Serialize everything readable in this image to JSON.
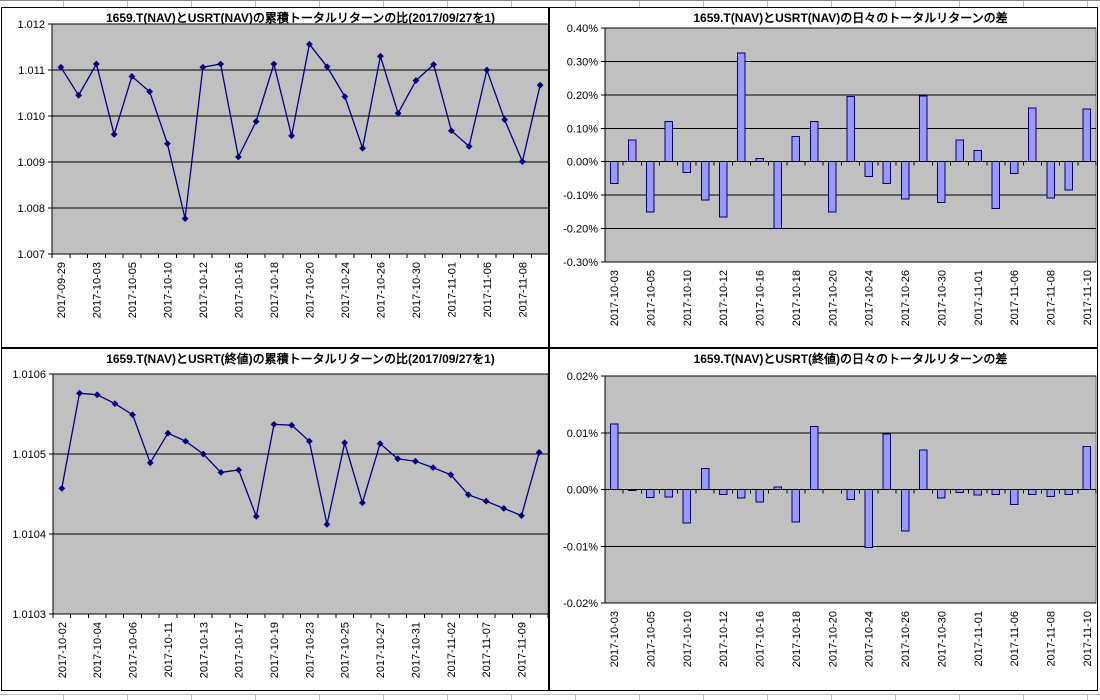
{
  "app": {
    "context": "excel-embedded-charts",
    "grid_rows_visible": [
      "top-partial-row",
      "bottom-partial-row"
    ]
  },
  "colors": {
    "plot_bg": "#c0c0c0",
    "chart_bg": "#ffffff",
    "gridline": "#000000",
    "plot_border": "#6f6f6f",
    "line_series": "#000080",
    "marker": "#000080",
    "bar_fill": "#9999ff",
    "bar_border": "#000066",
    "axis_text": "#000000"
  },
  "chart_data": [
    {
      "id": "nav-nav-cumulative-ratio",
      "type": "line",
      "title": "1659.T(NAV)とUSRT(NAV)の累積トータルリターンの比(2017/09/27を1)",
      "xlabel": "",
      "ylabel": "",
      "legend": "none",
      "grid": "on",
      "marker": "diamond",
      "ylim": [
        1.007,
        1.012
      ],
      "x_label_every": 2,
      "yticks": [
        {
          "v": 1.012,
          "label": "1.012"
        },
        {
          "v": 1.011,
          "label": "1.011"
        },
        {
          "v": 1.01,
          "label": "1.010"
        },
        {
          "v": 1.009,
          "label": "1.009"
        },
        {
          "v": 1.008,
          "label": "1.008"
        },
        {
          "v": 1.007,
          "label": "1.007"
        }
      ],
      "x": [
        "2017-09-29",
        "2017-10-02",
        "2017-10-03",
        "2017-10-04",
        "2017-10-05",
        "2017-10-06",
        "2017-10-10",
        "2017-10-11",
        "2017-10-12",
        "2017-10-13",
        "2017-10-16",
        "2017-10-17",
        "2017-10-18",
        "2017-10-19",
        "2017-10-20",
        "2017-10-23",
        "2017-10-24",
        "2017-10-25",
        "2017-10-26",
        "2017-10-27",
        "2017-10-30",
        "2017-10-31",
        "2017-11-01",
        "2017-11-02",
        "2017-11-06",
        "2017-11-07",
        "2017-11-08",
        "2017-11-09"
      ],
      "values": [
        1.01106,
        1.01045,
        1.01113,
        1.0096,
        1.01086,
        1.01053,
        1.0094,
        1.00777,
        1.01106,
        1.01113,
        1.00911,
        1.00988,
        1.01113,
        1.00957,
        1.01156,
        1.01107,
        1.01042,
        1.0093,
        1.0113,
        1.01006,
        1.01077,
        1.01112,
        1.00968,
        1.00934,
        1.011,
        1.00992,
        1.00901,
        1.01067
      ]
    },
    {
      "id": "nav-nav-daily-diff",
      "type": "bar",
      "title": "1659.T(NAV)とUSRT(NAV)の日々のトータルリターンの差",
      "xlabel": "",
      "ylabel": "",
      "legend": "none",
      "grid": "on",
      "unit": "percent",
      "ylim": [
        -0.3,
        0.4
      ],
      "x_label_every": 2,
      "yticks": [
        {
          "v": 0.4,
          "label": "0.40%"
        },
        {
          "v": 0.3,
          "label": "0.30%"
        },
        {
          "v": 0.2,
          "label": "0.20%"
        },
        {
          "v": 0.1,
          "label": "0.10%"
        },
        {
          "v": 0.0,
          "label": "0.00%"
        },
        {
          "v": -0.1,
          "label": "-0.10%"
        },
        {
          "v": -0.2,
          "label": "-0.20%"
        },
        {
          "v": -0.3,
          "label": "-0.30%"
        }
      ],
      "x": [
        "2017-10-03",
        "2017-10-04",
        "2017-10-05",
        "2017-10-06",
        "2017-10-10",
        "2017-10-11",
        "2017-10-12",
        "2017-10-13",
        "2017-10-16",
        "2017-10-17",
        "2017-10-18",
        "2017-10-19",
        "2017-10-20",
        "2017-10-23",
        "2017-10-24",
        "2017-10-25",
        "2017-10-26",
        "2017-10-27",
        "2017-10-30",
        "2017-10-31",
        "2017-11-01",
        "2017-11-02",
        "2017-11-06",
        "2017-11-07",
        "2017-11-08",
        "2017-11-09",
        "2017-11-10"
      ],
      "values": [
        -0.065,
        0.065,
        -0.15,
        0.12,
        -0.033,
        -0.115,
        -0.165,
        0.325,
        0.01,
        -0.2,
        0.075,
        0.12,
        -0.15,
        0.195,
        -0.045,
        -0.065,
        -0.112,
        0.196,
        -0.122,
        0.065,
        0.033,
        -0.14,
        -0.035,
        0.16,
        -0.108,
        -0.085,
        0.158
      ]
    },
    {
      "id": "nav-close-cumulative-ratio",
      "type": "line",
      "title": "1659.T(NAV)とUSRT(終値)の累積トータルリターンの比(2017/09/27を1)",
      "xlabel": "",
      "ylabel": "",
      "legend": "none",
      "grid": "on",
      "marker": "diamond",
      "ylim": [
        1.0103,
        1.0106
      ],
      "x_label_every": 2,
      "yticks": [
        {
          "v": 1.0106,
          "label": "1.0106"
        },
        {
          "v": 1.0105,
          "label": "1.0105"
        },
        {
          "v": 1.0104,
          "label": "1.0104"
        },
        {
          "v": 1.0103,
          "label": "1.0103"
        }
      ],
      "x": [
        "2017-10-02",
        "2017-10-03",
        "2017-10-04",
        "2017-10-05",
        "2017-10-06",
        "2017-10-10",
        "2017-10-11",
        "2017-10-12",
        "2017-10-13",
        "2017-10-16",
        "2017-10-17",
        "2017-10-18",
        "2017-10-19",
        "2017-10-20",
        "2017-10-23",
        "2017-10-24",
        "2017-10-25",
        "2017-10-26",
        "2017-10-27",
        "2017-10-30",
        "2017-10-31",
        "2017-11-01",
        "2017-11-02",
        "2017-11-06",
        "2017-11-07",
        "2017-11-08",
        "2017-11-09",
        "2017-11-10"
      ],
      "values": [
        1.010457,
        1.010576,
        1.010574,
        1.010563,
        1.010549,
        1.010489,
        1.010526,
        1.010516,
        1.0105,
        1.010477,
        1.01048,
        1.010422,
        1.010537,
        1.010536,
        1.010516,
        1.010412,
        1.010514,
        1.010439,
        1.010513,
        1.010494,
        1.010491,
        1.010483,
        1.010474,
        1.010449,
        1.010441,
        1.010432,
        1.010423,
        1.010502
      ]
    },
    {
      "id": "nav-close-daily-diff",
      "type": "bar",
      "title": "1659.T(NAV)とUSRT(終値)の日々のトータルリターンの差",
      "xlabel": "",
      "ylabel": "",
      "legend": "none",
      "grid": "on",
      "unit": "percent",
      "ylim": [
        -0.02,
        0.02
      ],
      "x_label_every": 2,
      "yticks": [
        {
          "v": 0.02,
          "label": "0.02%"
        },
        {
          "v": 0.01,
          "label": "0.01%"
        },
        {
          "v": 0.0,
          "label": "0.00%"
        },
        {
          "v": -0.01,
          "label": "-0.01%"
        },
        {
          "v": -0.02,
          "label": "-0.02%"
        }
      ],
      "x": [
        "2017-10-03",
        "2017-10-04",
        "2017-10-05",
        "2017-10-06",
        "2017-10-10",
        "2017-10-11",
        "2017-10-12",
        "2017-10-13",
        "2017-10-16",
        "2017-10-17",
        "2017-10-18",
        "2017-10-19",
        "2017-10-20",
        "2017-10-23",
        "2017-10-24",
        "2017-10-25",
        "2017-10-26",
        "2017-10-27",
        "2017-10-30",
        "2017-10-31",
        "2017-11-01",
        "2017-11-02",
        "2017-11-06",
        "2017-11-07",
        "2017-11-08",
        "2017-11-09",
        "2017-11-10"
      ],
      "values": [
        0.0115,
        -0.0002,
        -0.0014,
        -0.0013,
        -0.0059,
        0.0037,
        -0.0009,
        -0.0015,
        -0.0022,
        0.0004,
        -0.0057,
        0.0111,
        0.0,
        -0.0018,
        -0.0102,
        0.0098,
        -0.0073,
        0.007,
        -0.0015,
        -0.0005,
        -0.001,
        -0.0009,
        -0.0026,
        -0.0009,
        -0.0012,
        -0.0009,
        0.0076
      ]
    }
  ]
}
